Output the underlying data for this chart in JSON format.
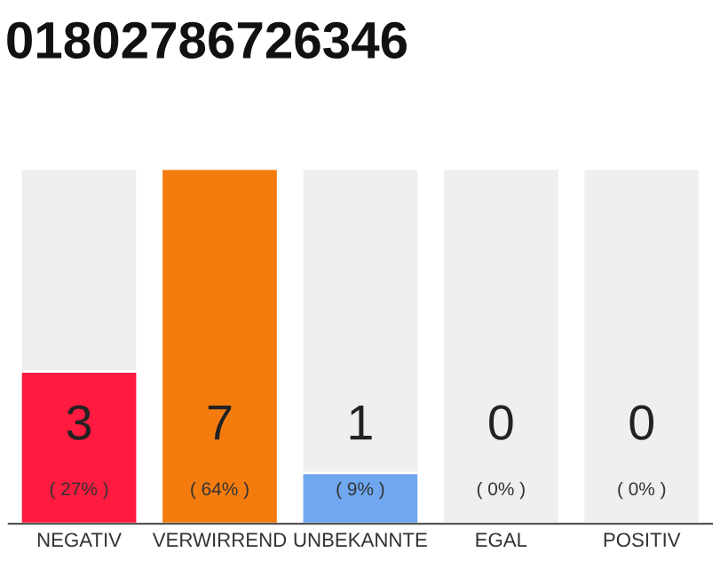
{
  "chart_data": {
    "type": "bar",
    "title": "01802786726346",
    "categories": [
      "NEGATIV",
      "VERWIRREND",
      "UNBEKANNTE",
      "EGAL",
      "POSITIV"
    ],
    "values": [
      3,
      7,
      1,
      0,
      0
    ],
    "colors": [
      "#ff1a40",
      "#f47c0f",
      "#6fa8f0",
      null,
      null
    ],
    "ylim": [
      0,
      7
    ],
    "tick_labels": "x",
    "value_labels": [
      "3\n( 27% )",
      "7\n( 64% )",
      "1\n( 9% )",
      "0\n( 0% )",
      "0\n( 0% )"
    ]
  }
}
